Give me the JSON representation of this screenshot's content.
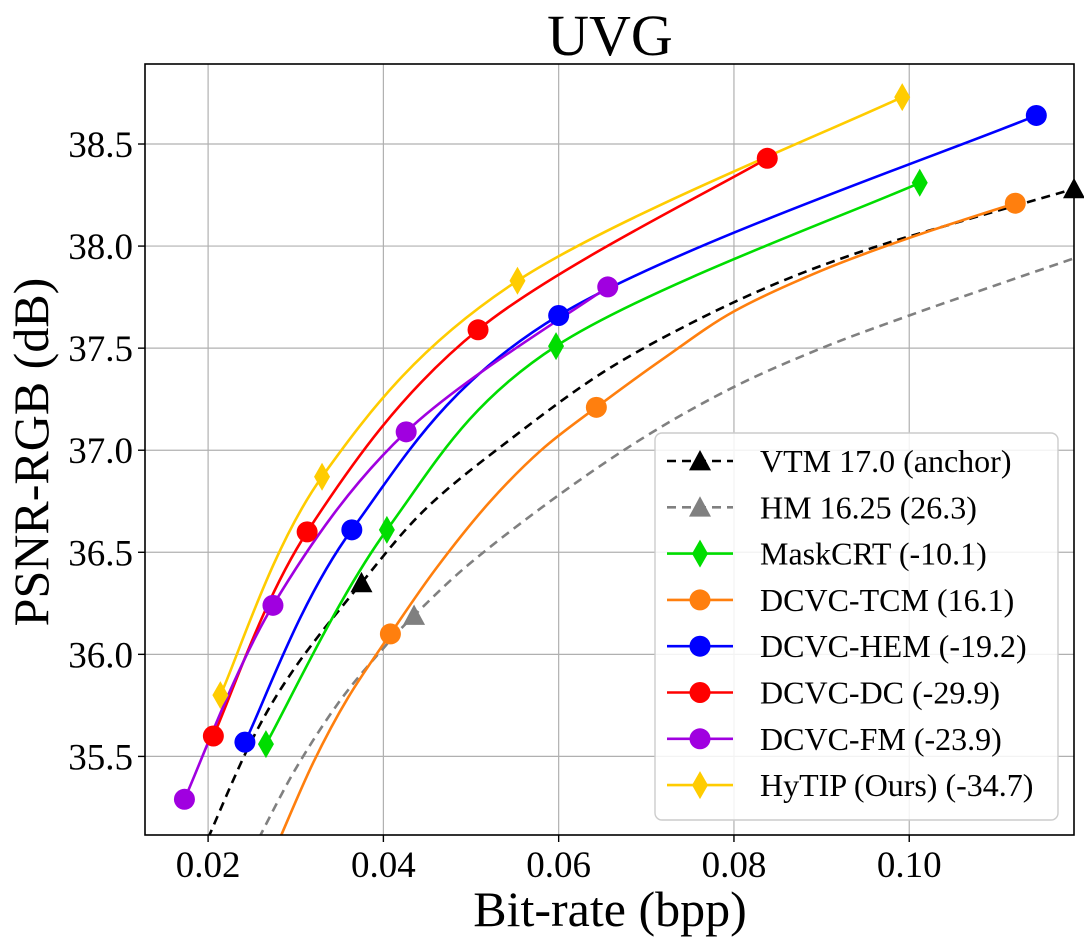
{
  "chart_data": {
    "type": "line",
    "title": "UVG",
    "xlabel": "Bit-rate (bpp)",
    "ylabel": "PSNR-RGB (dB)",
    "xlim": [
      0.0128,
      0.1188
    ],
    "ylim": [
      35.115,
      38.892
    ],
    "xticks": [
      0.02,
      0.04,
      0.06,
      0.08,
      0.1
    ],
    "xtick_labels": [
      "0.02",
      "0.04",
      "0.06",
      "0.08",
      "0.10"
    ],
    "yticks": [
      35.5,
      36.0,
      36.5,
      37.0,
      37.5,
      38.0,
      38.5
    ],
    "ytick_labels": [
      "35.5",
      "36.0",
      "36.5",
      "37.0",
      "37.5",
      "38.0",
      "38.5"
    ],
    "grid": true,
    "legend_position": "lower-right",
    "series": [
      {
        "name": "VTM 17.0 (anchor)",
        "color": "#000000",
        "line_style": "dashed",
        "marker": "triangle",
        "x": [
          0.0375,
          0.1188
        ],
        "y": [
          36.35,
          38.28
        ],
        "curve": [
          [
            0.02,
            35.1
          ],
          [
            0.025,
            35.58
          ],
          [
            0.03,
            35.94
          ],
          [
            0.0375,
            36.35
          ],
          [
            0.045,
            36.72
          ],
          [
            0.055,
            37.07
          ],
          [
            0.065,
            37.38
          ],
          [
            0.075,
            37.62
          ],
          [
            0.085,
            37.82
          ],
          [
            0.095,
            37.98
          ],
          [
            0.105,
            38.11
          ],
          [
            0.1188,
            38.28
          ]
        ]
      },
      {
        "name": "HM 16.25 (26.3)",
        "color": "#808080",
        "line_style": "dashed",
        "marker": "triangle",
        "x": [
          0.0435
        ],
        "y": [
          36.19
        ],
        "curve": [
          [
            0.0258,
            35.1
          ],
          [
            0.03,
            35.44
          ],
          [
            0.035,
            35.77
          ],
          [
            0.04,
            36.03
          ],
          [
            0.0435,
            36.19
          ],
          [
            0.05,
            36.45
          ],
          [
            0.06,
            36.78
          ],
          [
            0.07,
            37.07
          ],
          [
            0.08,
            37.31
          ],
          [
            0.09,
            37.5
          ],
          [
            0.1,
            37.66
          ],
          [
            0.11,
            37.81
          ],
          [
            0.1188,
            37.94
          ]
        ]
      },
      {
        "name": "MaskCRT (-10.1)",
        "color": "#00dd00",
        "line_style": "solid",
        "marker": "diamond",
        "x": [
          0.0266,
          0.0404,
          0.0597,
          0.1012
        ],
        "y": [
          35.56,
          36.61,
          37.51,
          38.31
        ]
      },
      {
        "name": "DCVC-TCM (16.1)",
        "color": "#ff7f0e",
        "line_style": "solid",
        "marker": "circle",
        "x": [
          0.0408,
          0.0643,
          0.1121
        ],
        "y": [
          36.1,
          37.21,
          38.21
        ],
        "curve": [
          [
            0.0282,
            35.1
          ],
          [
            0.032,
            35.47
          ],
          [
            0.036,
            35.79
          ],
          [
            0.0408,
            36.1
          ],
          [
            0.046,
            36.42
          ],
          [
            0.052,
            36.74
          ],
          [
            0.058,
            37.0
          ],
          [
            0.0643,
            37.21
          ],
          [
            0.072,
            37.45
          ],
          [
            0.08,
            37.68
          ],
          [
            0.09,
            37.88
          ],
          [
            0.1,
            38.04
          ],
          [
            0.1121,
            38.21
          ]
        ]
      },
      {
        "name": "DCVC-HEM (-19.2)",
        "color": "#0000ff",
        "line_style": "solid",
        "marker": "circle",
        "x": [
          0.0242,
          0.0364,
          0.06,
          0.1145
        ],
        "y": [
          35.57,
          36.61,
          37.66,
          38.64
        ]
      },
      {
        "name": "DCVC-DC (-29.9)",
        "color": "#ff0000",
        "line_style": "solid",
        "marker": "circle",
        "x": [
          0.0206,
          0.0313,
          0.0508,
          0.0838
        ],
        "y": [
          35.6,
          36.6,
          37.59,
          38.43
        ]
      },
      {
        "name": "DCVC-FM (-23.9)",
        "color": "#a000e0",
        "line_style": "solid",
        "marker": "circle",
        "x": [
          0.0173,
          0.0274,
          0.0426,
          0.0656
        ],
        "y": [
          35.29,
          36.24,
          37.09,
          37.8
        ]
      },
      {
        "name": "HyTIP (Ours) (-34.7)",
        "color": "#ffcc00",
        "line_style": "solid",
        "marker": "diamond",
        "x": [
          0.0214,
          0.033,
          0.0553,
          0.0992
        ],
        "y": [
          35.8,
          36.87,
          37.83,
          38.73
        ]
      }
    ]
  }
}
